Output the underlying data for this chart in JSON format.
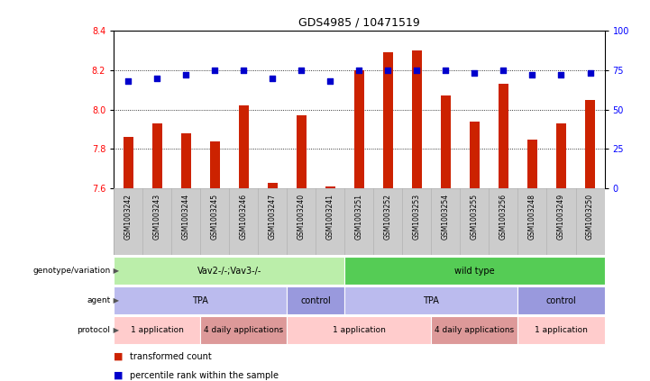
{
  "title": "GDS4985 / 10471519",
  "samples": [
    "GSM1003242",
    "GSM1003243",
    "GSM1003244",
    "GSM1003245",
    "GSM1003246",
    "GSM1003247",
    "GSM1003240",
    "GSM1003241",
    "GSM1003251",
    "GSM1003252",
    "GSM1003253",
    "GSM1003254",
    "GSM1003255",
    "GSM1003256",
    "GSM1003248",
    "GSM1003249",
    "GSM1003250"
  ],
  "bar_values": [
    7.86,
    7.93,
    7.88,
    7.84,
    8.02,
    7.63,
    7.97,
    7.61,
    8.2,
    8.29,
    8.3,
    8.07,
    7.94,
    8.13,
    7.85,
    7.93,
    8.05
  ],
  "dot_values": [
    68,
    70,
    72,
    75,
    75,
    70,
    75,
    68,
    75,
    75,
    75,
    75,
    73,
    75,
    72,
    72,
    73
  ],
  "ylim_left": [
    7.6,
    8.4
  ],
  "ylim_right": [
    0,
    100
  ],
  "yticks_left": [
    7.6,
    7.8,
    8.0,
    8.2,
    8.4
  ],
  "yticks_right": [
    0,
    25,
    50,
    75,
    100
  ],
  "bar_color": "#cc2200",
  "dot_color": "#0000cc",
  "background_color": "#ffffff",
  "hline_values": [
    7.8,
    8.0,
    8.2
  ],
  "genotype_segments": [
    {
      "text": "Vav2-/-;Vav3-/-",
      "start": 0,
      "end": 8,
      "color": "#bbeeaa"
    },
    {
      "text": "wild type",
      "start": 8,
      "end": 17,
      "color": "#55cc55"
    }
  ],
  "agent_segments": [
    {
      "text": "TPA",
      "start": 0,
      "end": 6,
      "color": "#bbbbee"
    },
    {
      "text": "control",
      "start": 6,
      "end": 8,
      "color": "#9999dd"
    },
    {
      "text": "TPA",
      "start": 8,
      "end": 14,
      "color": "#bbbbee"
    },
    {
      "text": "control",
      "start": 14,
      "end": 17,
      "color": "#9999dd"
    }
  ],
  "protocol_segments": [
    {
      "text": "1 application",
      "start": 0,
      "end": 3,
      "color": "#ffcccc"
    },
    {
      "text": "4 daily applications",
      "start": 3,
      "end": 6,
      "color": "#dd9999"
    },
    {
      "text": "1 application",
      "start": 6,
      "end": 11,
      "color": "#ffcccc"
    },
    {
      "text": "4 daily applications",
      "start": 11,
      "end": 14,
      "color": "#dd9999"
    },
    {
      "text": "1 application",
      "start": 14,
      "end": 17,
      "color": "#ffcccc"
    }
  ],
  "row_labels": [
    "genotype/variation",
    "agent",
    "protocol"
  ],
  "legend_items": [
    {
      "color": "#cc2200",
      "label": "transformed count"
    },
    {
      "color": "#0000cc",
      "label": "percentile rank within the sample"
    }
  ],
  "xlim": [
    -0.5,
    16.5
  ],
  "bar_width": 0.35
}
